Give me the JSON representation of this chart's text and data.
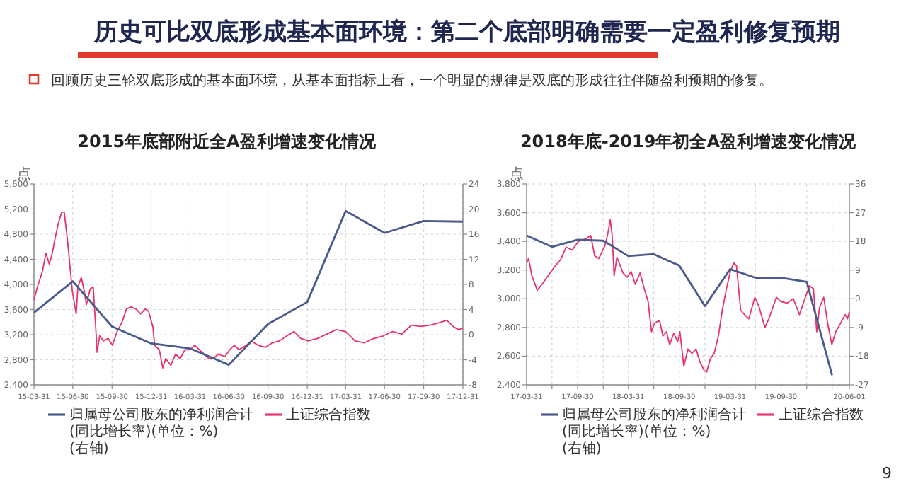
{
  "chart_data": [
    {
      "type": "other",
      "title": "历史可比双底形成基本面环境：第二个底部明确需要一定盈利修复预期",
      "annotations": [
        "回顾历史三轮双底形成的基本面环境，从基本面指标上看，一个明显的规律是双底的形成往往伴随盈利预期的修复。",
        "9"
      ]
    },
    {
      "type": "line",
      "title": "2015年底部附近全A盈利增速变化情况",
      "ylabel": "点",
      "grid": true,
      "legend": "bottom",
      "xlim": [
        "2015-03-31",
        "2017-12-31"
      ],
      "xticks": [
        {
          "value": "2015-03-31",
          "label": "15-03-31"
        },
        {
          "value": "2015-06-30",
          "label": "15-06-30"
        },
        {
          "value": "2015-09-30",
          "label": "15-09-30"
        },
        {
          "value": "2015-12-31",
          "label": "15-12-31"
        },
        {
          "value": "2016-03-31",
          "label": "16-03-31"
        },
        {
          "value": "2016-06-30",
          "label": "16-06-30"
        },
        {
          "value": "2016-09-30",
          "label": "16-09-30"
        },
        {
          "value": "2016-12-31",
          "label": "16-12-31"
        },
        {
          "value": "2017-03-31",
          "label": "17-03-31"
        },
        {
          "value": "2017-06-30",
          "label": "17-06-30"
        },
        {
          "value": "2017-09-30",
          "label": "17-09-30"
        },
        {
          "value": "2017-12-31",
          "label": "17-12-31"
        }
      ],
      "ylim": [
        2400,
        5600
      ],
      "yticks": [
        {
          "value": 2400,
          "label": "2,400"
        },
        {
          "value": 2800,
          "label": "2,800"
        },
        {
          "value": 3200,
          "label": "3,200"
        },
        {
          "value": 3600,
          "label": "3,600"
        },
        {
          "value": 4000,
          "label": "4,000"
        },
        {
          "value": 4400,
          "label": "4,400"
        },
        {
          "value": 4800,
          "label": "4,800"
        },
        {
          "value": 5200,
          "label": "5,200"
        },
        {
          "value": 5600,
          "label": "5,600"
        }
      ],
      "y2lim": [
        -8,
        24
      ],
      "y2ticks": [
        -8,
        -4,
        0,
        4,
        8,
        12,
        16,
        20,
        24
      ],
      "series": [
        {
          "name": "归属母公司股东的净利润合计(同比增长率)(单位：%)(右轴)",
          "color": "#4a5a8c",
          "axis": "y2",
          "x": [
            "2015-03-31",
            "2015-06-30",
            "2015-09-30",
            "2015-12-31",
            "2016-03-31",
            "2016-06-30",
            "2016-09-30",
            "2016-12-31",
            "2017-03-31",
            "2017-06-30",
            "2017-09-30",
            "2017-12-31"
          ],
          "values": [
            3.5,
            8.5,
            1.3,
            -1.4,
            -2.2,
            -4.8,
            1.7,
            5.2,
            19.7,
            16.2,
            18.1,
            18.0
          ]
        },
        {
          "name": "上证综合指数",
          "color": "#e8336a",
          "x": [
            "2015-03-31",
            "2015-04-08",
            "2015-04-20",
            "2015-04-28",
            "2015-05-06",
            "2015-05-13",
            "2015-05-20",
            "2015-05-27",
            "2015-06-04",
            "2015-06-10",
            "2015-06-18",
            "2015-06-23",
            "2015-06-29",
            "2015-07-08",
            "2015-07-12",
            "2015-07-20",
            "2015-07-27",
            "2015-08-01",
            "2015-08-10",
            "2015-08-17",
            "2015-08-24",
            "2015-08-26",
            "2015-09-01",
            "2015-09-10",
            "2015-09-21",
            "2015-10-01",
            "2015-10-12",
            "2015-10-23",
            "2015-11-03",
            "2015-11-14",
            "2015-11-25",
            "2015-12-06",
            "2015-12-17",
            "2015-12-25",
            "2016-01-04",
            "2016-01-08",
            "2016-01-19",
            "2016-01-27",
            "2016-02-03",
            "2016-02-15",
            "2016-02-26",
            "2016-03-08",
            "2016-03-19",
            "2016-03-31",
            "2016-04-11",
            "2016-04-22",
            "2016-05-03",
            "2016-05-14",
            "2016-05-25",
            "2016-06-05",
            "2016-06-21",
            "2016-07-02",
            "2016-07-13",
            "2016-07-24",
            "2016-08-10",
            "2016-08-21",
            "2016-09-07",
            "2016-09-24",
            "2016-10-10",
            "2016-10-27",
            "2016-11-13",
            "2016-11-30",
            "2016-12-16",
            "2017-01-02",
            "2017-01-24",
            "2017-02-15",
            "2017-03-09",
            "2017-03-31",
            "2017-04-22",
            "2017-05-14",
            "2017-06-05",
            "2017-06-27",
            "2017-07-19",
            "2017-08-10",
            "2017-09-01",
            "2017-09-23",
            "2017-10-15",
            "2017-11-06",
            "2017-11-23",
            "2017-12-10",
            "2017-12-21",
            "2017-12-31"
          ],
          "values": [
            3750,
            3960,
            4210,
            4500,
            4320,
            4500,
            4750,
            4970,
            5150,
            5150,
            4680,
            4320,
            3890,
            3530,
            3960,
            4110,
            3890,
            3680,
            3930,
            3960,
            3180,
            2920,
            3180,
            3100,
            3140,
            3030,
            3250,
            3390,
            3610,
            3640,
            3610,
            3530,
            3610,
            3570,
            3320,
            3030,
            2960,
            2670,
            2820,
            2710,
            2890,
            2820,
            2960,
            2960,
            3030,
            2960,
            2890,
            2820,
            2820,
            2890,
            2850,
            2960,
            3030,
            2960,
            3030,
            3100,
            3030,
            3000,
            3070,
            3100,
            3180,
            3250,
            3140,
            3100,
            3140,
            3210,
            3280,
            3250,
            3100,
            3070,
            3140,
            3180,
            3250,
            3210,
            3350,
            3330,
            3350,
            3390,
            3430,
            3320,
            3280,
            3300
          ]
        }
      ]
    },
    {
      "type": "line",
      "title": "2018年底-2019年初全A盈利增速变化情况",
      "ylabel": "点",
      "grid": true,
      "legend": "bottom",
      "xlim": [
        "2017-03-31",
        "2020-06-01"
      ],
      "xticks": [
        {
          "value": "2017-03-31",
          "label": "17-03-31"
        },
        {
          "value": "2017-06-30",
          "label": null
        },
        {
          "value": "2017-09-30",
          "label": "17-09-30"
        },
        {
          "value": "2017-12-31",
          "label": null
        },
        {
          "value": "2018-03-31",
          "label": "18-03-31"
        },
        {
          "value": "2018-06-30",
          "label": null
        },
        {
          "value": "2018-09-30",
          "label": "18-09-30"
        },
        {
          "value": "2018-12-31",
          "label": null
        },
        {
          "value": "2019-03-31",
          "label": "19-03-31"
        },
        {
          "value": "2019-06-30",
          "label": null
        },
        {
          "value": "2019-09-30",
          "label": "19-09-30"
        },
        {
          "value": "2019-12-31",
          "label": null
        },
        {
          "value": "2020-03-31",
          "label": null
        },
        {
          "value": "2020-06-01",
          "label": "20-06-01"
        }
      ],
      "ylim": [
        2400,
        3800
      ],
      "yticks": [
        {
          "value": 2400,
          "label": "2,400"
        },
        {
          "value": 2600,
          "label": "2,600"
        },
        {
          "value": 2800,
          "label": "2,800"
        },
        {
          "value": 3000,
          "label": "3,000"
        },
        {
          "value": 3200,
          "label": "3,200"
        },
        {
          "value": 3400,
          "label": "3,400"
        },
        {
          "value": 3600,
          "label": "3,600"
        },
        {
          "value": 3800,
          "label": "3,800"
        }
      ],
      "y2lim": [
        -27,
        36
      ],
      "y2ticks": [
        -27,
        -18,
        -9,
        0,
        9,
        18,
        27,
        36
      ],
      "series": [
        {
          "name": "归属母公司股东的净利润合计(同比增长率)(单位：%)(右轴)",
          "color": "#4a5a8c",
          "axis": "y2",
          "x": [
            "2017-03-31",
            "2017-06-30",
            "2017-09-30",
            "2017-12-31",
            "2018-03-31",
            "2018-06-30",
            "2018-09-30",
            "2018-12-31",
            "2019-03-31",
            "2019-06-30",
            "2019-09-30",
            "2019-12-31",
            "2020-03-31"
          ],
          "values": [
            19.8,
            16.3,
            18.5,
            18.2,
            13.4,
            14.0,
            10.4,
            -2.3,
            9.3,
            6.6,
            6.6,
            5.3,
            -24.0
          ]
        },
        {
          "name": "上证综合指数",
          "color": "#e8336a",
          "x": [
            "2017-03-31",
            "2017-04-07",
            "2017-04-19",
            "2017-05-08",
            "2017-05-25",
            "2017-06-16",
            "2017-07-08",
            "2017-07-30",
            "2017-08-20",
            "2017-09-11",
            "2017-10-03",
            "2017-11-01",
            "2017-11-16",
            "2017-11-30",
            "2017-12-15",
            "2018-01-06",
            "2018-01-16",
            "2018-01-25",
            "2018-02-01",
            "2018-02-08",
            "2018-02-18",
            "2018-02-28",
            "2018-03-12",
            "2018-03-27",
            "2018-04-10",
            "2018-04-25",
            "2018-05-12",
            "2018-05-27",
            "2018-06-10",
            "2018-06-22",
            "2018-07-03",
            "2018-07-21",
            "2018-08-02",
            "2018-08-15",
            "2018-08-26",
            "2018-09-10",
            "2018-09-24",
            "2018-10-02",
            "2018-10-16",
            "2018-10-31",
            "2018-11-14",
            "2018-11-29",
            "2018-12-13",
            "2018-12-28",
            "2019-01-06",
            "2019-01-19",
            "2019-02-02",
            "2019-02-17",
            "2019-03-03",
            "2019-03-18",
            "2019-04-01",
            "2019-04-13",
            "2019-04-23",
            "2019-05-08",
            "2019-05-22",
            "2019-06-06",
            "2019-06-28",
            "2019-07-12",
            "2019-08-03",
            "2019-08-17",
            "2019-09-13",
            "2019-09-30",
            "2019-10-22",
            "2019-11-13",
            "2019-12-05",
            "2019-12-26",
            "2020-01-10",
            "2020-01-24",
            "2020-02-05",
            "2020-02-15",
            "2020-03-01",
            "2020-03-15",
            "2020-03-30",
            "2020-04-13",
            "2020-04-28",
            "2020-05-17",
            "2020-05-25",
            "2020-06-01"
          ],
          "values": [
            3250,
            3280,
            3160,
            3060,
            3100,
            3160,
            3220,
            3270,
            3360,
            3340,
            3400,
            3420,
            3440,
            3300,
            3280,
            3370,
            3450,
            3550,
            3440,
            3160,
            3290,
            3240,
            3180,
            3150,
            3190,
            3100,
            3180,
            3070,
            2980,
            2770,
            2830,
            2850,
            2740,
            2770,
            2680,
            2760,
            2700,
            2770,
            2530,
            2650,
            2620,
            2650,
            2560,
            2500,
            2490,
            2580,
            2620,
            2740,
            2920,
            3070,
            3190,
            3250,
            3230,
            2920,
            2890,
            2860,
            3010,
            2950,
            2800,
            2860,
            3010,
            2980,
            2970,
            3000,
            2890,
            3010,
            3090,
            3070,
            2770,
            2940,
            3010,
            2830,
            2680,
            2770,
            2820,
            2890,
            2860,
            2910
          ]
        }
      ]
    }
  ]
}
